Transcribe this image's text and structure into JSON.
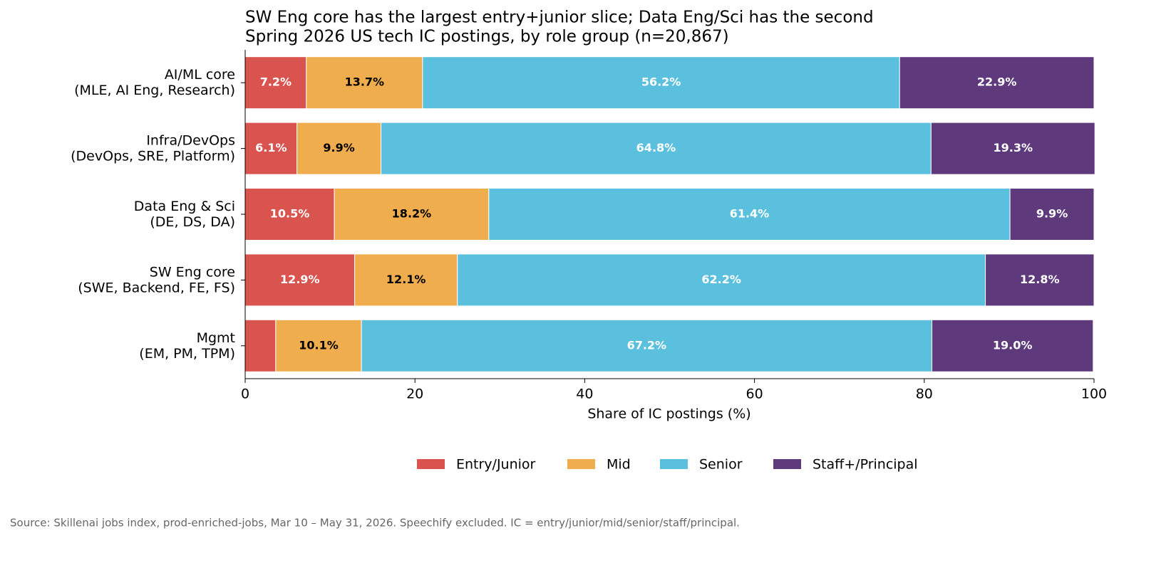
{
  "chart_data": {
    "type": "stacked-barh",
    "title": "SW Eng core has the largest entry+junior slice; Data Eng/Sci has the second",
    "subtitle": "Spring 2026 US tech IC postings, by role group (n=20,867)",
    "xlabel": "Share of IC postings (%)",
    "source": "Source: Skillenai jobs index, prod-enriched-jobs, Mar 10 – May 31, 2026. Speechify excluded. IC = entry/junior/mid/senior/staff/principal.",
    "categories": [
      "AI/ML core\n(MLE, AI Eng, Research)",
      "Infra/DevOps\n(DevOps, SRE, Platform)",
      "Data Eng & Sci\n(DE, DS, DA)",
      "SW Eng core\n(SWE, Backend, FE, FS)",
      "Mgmt\n(EM, PM, TPM)"
    ],
    "series": [
      {
        "name": "Entry/Junior",
        "color": "#d9534f",
        "label_color": "#ffffff",
        "values": [
          7.2,
          6.1,
          10.5,
          12.9,
          3.6
        ],
        "value_labels": [
          "7.2%",
          "6.1%",
          "10.5%",
          "12.9%",
          null
        ]
      },
      {
        "name": "Mid",
        "color": "#f0ad4e",
        "label_color": "#000000",
        "values": [
          13.7,
          9.9,
          18.2,
          12.1,
          10.1
        ],
        "value_labels": [
          "13.7%",
          "9.9%",
          "18.2%",
          "12.1%",
          "10.1%"
        ]
      },
      {
        "name": "Senior",
        "color": "#5bc0de",
        "label_color": "#ffffff",
        "values": [
          56.2,
          64.8,
          61.4,
          62.2,
          67.2
        ],
        "value_labels": [
          "56.2%",
          "64.8%",
          "61.4%",
          "62.2%",
          "67.2%"
        ]
      },
      {
        "name": "Staff+/Principal",
        "color": "#5e3a7c",
        "label_color": "#ffffff",
        "values": [
          22.9,
          19.3,
          9.9,
          12.8,
          19.0
        ],
        "value_labels": [
          "22.9%",
          "19.3%",
          "9.9%",
          "12.8%",
          "19.0%"
        ]
      }
    ],
    "xlim": [
      0,
      100
    ],
    "xticks": [
      0,
      20,
      40,
      60,
      80,
      100
    ],
    "legend": "bottom"
  }
}
